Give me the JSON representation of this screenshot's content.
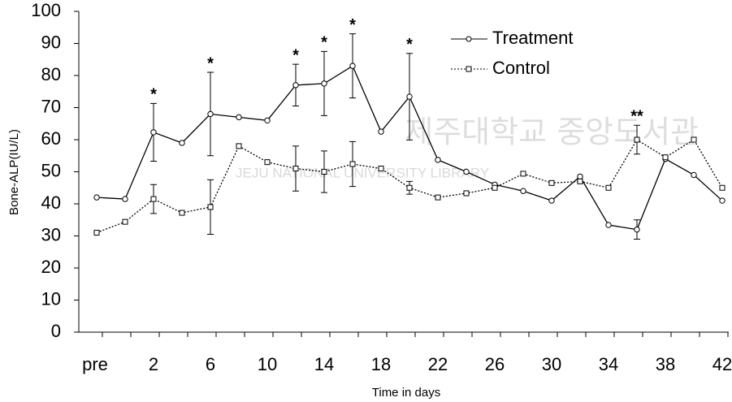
{
  "chart_data": {
    "type": "line",
    "y_label": "Bone-ALP(IU/L)",
    "x_label": "Time in days",
    "watermark": {
      "title": "제주대학교 중앙도서관",
      "subtitle": "JEJU NATIONAL UNIVERSITY LIBRARY"
    },
    "categories": [
      "pre",
      null,
      "2",
      null,
      "6",
      null,
      "10",
      null,
      "14",
      null,
      "18",
      null,
      "22",
      null,
      "26",
      null,
      "30",
      null,
      "34",
      null,
      "38",
      null,
      "42"
    ],
    "annotations": [
      null,
      null,
      "*",
      null,
      "*",
      null,
      null,
      "*",
      "*",
      "*",
      null,
      "*",
      null,
      null,
      null,
      null,
      null,
      null,
      null,
      "**",
      null,
      null,
      null
    ],
    "series": [
      {
        "name": "Treatment",
        "color": "#000000",
        "marker": "circle",
        "dash": "solid",
        "values": [
          42,
          41.5,
          62.3,
          59,
          68,
          67,
          66,
          77,
          77.5,
          83,
          62.5,
          73.4,
          53.7,
          50,
          46,
          44,
          41,
          48.5,
          33.4,
          32,
          54,
          49,
          41
        ],
        "errors": [
          null,
          null,
          9,
          null,
          13,
          null,
          null,
          6.5,
          10,
          10,
          null,
          13.5,
          null,
          null,
          null,
          null,
          null,
          null,
          null,
          3,
          null,
          null,
          null
        ]
      },
      {
        "name": "Control",
        "color": "#000000",
        "marker": "square",
        "dash": "dotted",
        "values": [
          31,
          34.4,
          41.5,
          37.2,
          39,
          58,
          53,
          51,
          50,
          52.4,
          51,
          45,
          42,
          43.3,
          45,
          49.4,
          46.5,
          47,
          45,
          60,
          54.5,
          60,
          45
        ],
        "errors": [
          null,
          null,
          4.5,
          null,
          8.5,
          null,
          null,
          7,
          6.5,
          7,
          null,
          2,
          null,
          null,
          null,
          null,
          null,
          null,
          null,
          4.5,
          null,
          null,
          null
        ]
      }
    ],
    "ylim": [
      0,
      100
    ],
    "yticks": [
      0,
      10,
      20,
      30,
      40,
      50,
      60,
      70,
      80,
      90,
      100
    ],
    "legend": "upper-right"
  }
}
